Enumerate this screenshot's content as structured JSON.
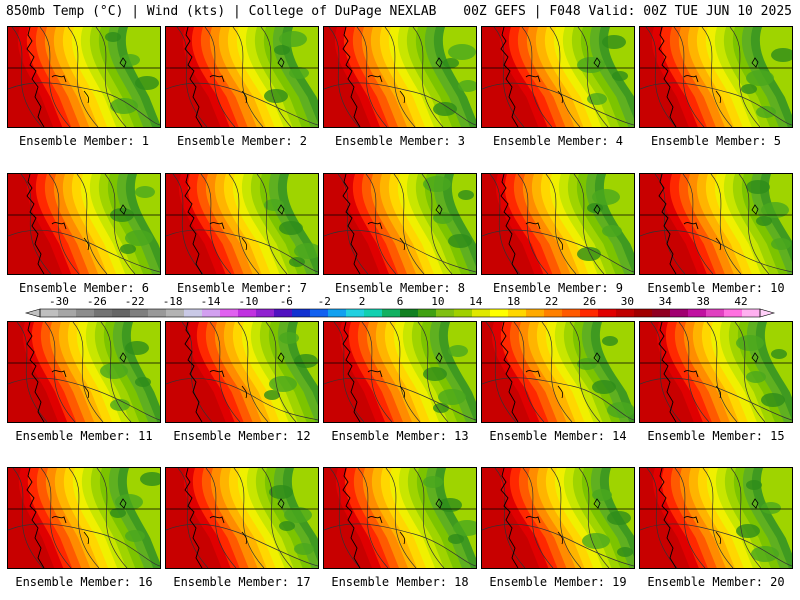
{
  "header": {
    "left": "850mb Temp (°C) | Wind (kts) | College of DuPage NEXLAB",
    "right": "00Z GEFS | F048 Valid: 00Z TUE JUN 10 2025"
  },
  "member_label_prefix": "Ensemble Member: ",
  "members": [
    1,
    2,
    3,
    4,
    5,
    6,
    7,
    8,
    9,
    10,
    11,
    12,
    13,
    14,
    15,
    16,
    17,
    18,
    19,
    20
  ],
  "colorbar": {
    "tick_labels": [
      "-30",
      "-26",
      "-22",
      "-18",
      "-14",
      "-10",
      "-6",
      "-2",
      "2",
      "6",
      "10",
      "14",
      "18",
      "22",
      "26",
      "30",
      "34",
      "38",
      "42"
    ],
    "tick_values": [
      -30,
      -26,
      -22,
      -18,
      -14,
      -10,
      -6,
      -2,
      2,
      6,
      10,
      14,
      18,
      22,
      26,
      30,
      34,
      38,
      42
    ],
    "range": [
      -32,
      44
    ],
    "colors": [
      "#bfbfbf",
      "#a6a6a6",
      "#8c8c8c",
      "#737373",
      "#666666",
      "#7f7f7f",
      "#999999",
      "#b3b3b3",
      "#c9c9e6",
      "#d2a0f0",
      "#e060f0",
      "#c030e0",
      "#9020d0",
      "#5010c0",
      "#1030d0",
      "#1060f0",
      "#10a0f0",
      "#20d0e0",
      "#10d0b0",
      "#10b060",
      "#108020",
      "#40a010",
      "#80c010",
      "#a0d000",
      "#e0e800",
      "#ffff00",
      "#ffd700",
      "#ffaa00",
      "#ff8000",
      "#ff5a00",
      "#ff2800",
      "#e00000",
      "#c00000",
      "#a00000",
      "#900020",
      "#a00070",
      "#c010a0",
      "#e040c0",
      "#ff70e0",
      "#ffb0f0"
    ]
  }
}
